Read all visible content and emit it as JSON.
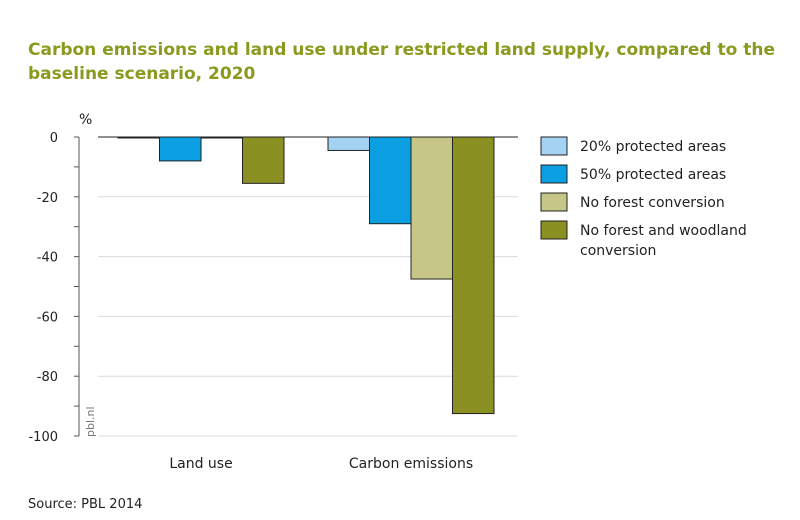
{
  "title": "Carbon emissions and land use under restricted land supply, compared to the baseline scenario, 2020",
  "source": "Source: PBL 2014",
  "watermark": "pbl.nl",
  "chart_data": {
    "type": "bar",
    "ylabel": "%",
    "ylim": [
      -100,
      0
    ],
    "yticks": [
      "0",
      "-20",
      "-40",
      "-60",
      "-80",
      "-100"
    ],
    "ytick_values": [
      0,
      -20,
      -40,
      -60,
      -80,
      -100
    ],
    "categories": [
      "Land use",
      "Carbon emissions"
    ],
    "series": [
      {
        "name": "20% protected areas",
        "color": "#a3d2f3",
        "values": [
          -0.3,
          -4.5
        ]
      },
      {
        "name": "50% protected areas",
        "color": "#0b9ee0",
        "values": [
          -8,
          -29
        ]
      },
      {
        "name": "No forest conversion",
        "color": "#c6c787",
        "values": [
          -0.3,
          -47.5
        ]
      },
      {
        "name": "No forest and woodland conversion",
        "color": "#8a9122",
        "values": [
          -15.5,
          -92.5
        ]
      }
    ],
    "legend": {
      "position": "right",
      "labels": [
        [
          "20% protected areas"
        ],
        [
          "50% protected areas"
        ],
        [
          "No forest conversion"
        ],
        [
          "No forest and woodland",
          "conversion"
        ]
      ]
    },
    "grid": true
  }
}
